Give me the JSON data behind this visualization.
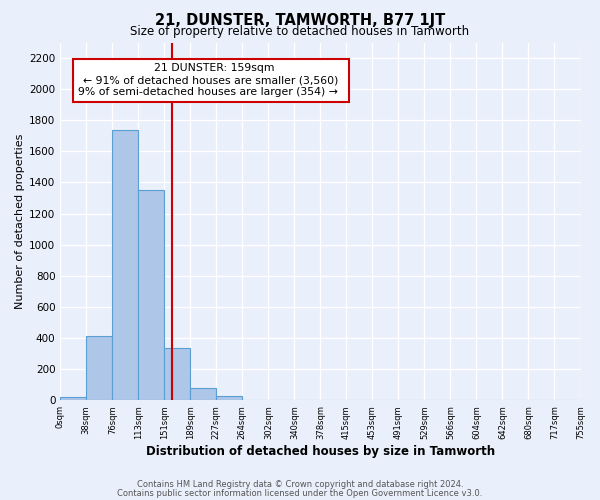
{
  "title": "21, DUNSTER, TAMWORTH, B77 1JT",
  "subtitle": "Size of property relative to detached houses in Tamworth",
  "xlabel": "Distribution of detached houses by size in Tamworth",
  "ylabel": "Number of detached properties",
  "bin_labels": [
    "0sqm",
    "38sqm",
    "76sqm",
    "113sqm",
    "151sqm",
    "189sqm",
    "227sqm",
    "264sqm",
    "302sqm",
    "340sqm",
    "378sqm",
    "415sqm",
    "453sqm",
    "491sqm",
    "529sqm",
    "566sqm",
    "604sqm",
    "642sqm",
    "680sqm",
    "717sqm",
    "755sqm"
  ],
  "bar_values": [
    18,
    415,
    1740,
    1350,
    335,
    78,
    25,
    0,
    0,
    0,
    0,
    0,
    0,
    0,
    0,
    0,
    0,
    0,
    0,
    0
  ],
  "bar_color": "#aec6e8",
  "bar_edge_color": "#5a9fd4",
  "property_line_x": 4.28,
  "annotation_title": "21 DUNSTER: 159sqm",
  "annotation_line1": "← 91% of detached houses are smaller (3,560)",
  "annotation_line2": "9% of semi-detached houses are larger (354) →",
  "annotation_box_color": "#ffffff",
  "annotation_box_edge": "#cc0000",
  "red_line_color": "#cc0000",
  "ylim": [
    0,
    2300
  ],
  "yticks": [
    0,
    200,
    400,
    600,
    800,
    1000,
    1200,
    1400,
    1600,
    1800,
    2000,
    2200
  ],
  "footer_line1": "Contains HM Land Registry data © Crown copyright and database right 2024.",
  "footer_line2": "Contains public sector information licensed under the Open Government Licence v3.0.",
  "bg_color": "#eaf0fb",
  "plot_bg_color": "#eaf0fb"
}
